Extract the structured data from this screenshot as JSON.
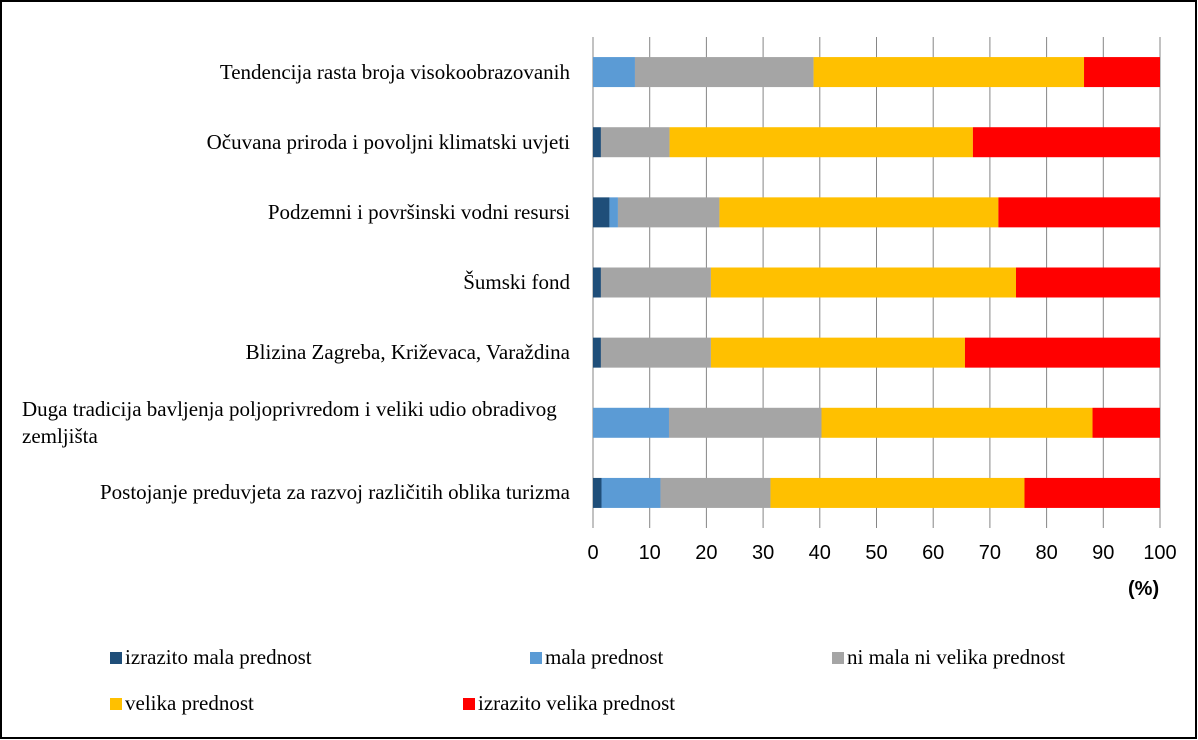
{
  "chart_data": {
    "type": "stacked-barh",
    "categories": [
      "Tendencija rasta broja visokoobrazovanih",
      "Očuvana priroda i povoljni klimatski uvjeti",
      "Podzemni i površinski vodni resursi",
      "Šumski fond",
      "Blizina Zagreba, Križevaca, Varaždina",
      "Duga tradicija bavljenja poljoprivredom i veliki udio obradivog zemljišta",
      "Postojanje preduvjeta za razvoj različitih oblika turizma"
    ],
    "series": [
      {
        "name": "izrazito mala prednost",
        "color": "#1f4e79",
        "values": [
          0,
          1.4,
          2.9,
          1.4,
          1.4,
          0,
          1.5
        ]
      },
      {
        "name": "mala prednost",
        "color": "#5b9bd5",
        "values": [
          7.4,
          0,
          1.5,
          0,
          0,
          13.4,
          10.4
        ]
      },
      {
        "name": "ni mala ni velika prednost",
        "color": "#a5a5a5",
        "values": [
          31.5,
          12.1,
          17.9,
          19.4,
          19.4,
          26.9,
          19.4
        ]
      },
      {
        "name": "velika prednost",
        "color": "#ffc000",
        "values": [
          47.7,
          53.5,
          49.2,
          53.8,
          44.8,
          47.8,
          44.8
        ]
      },
      {
        "name": "izrazito velika prednost",
        "color": "#ff0000",
        "values": [
          13.4,
          33,
          28.5,
          25.4,
          34.4,
          11.9,
          23.9
        ]
      }
    ],
    "xlabel": "(%)",
    "xlim": [
      0,
      100
    ],
    "xticks": [
      0,
      10,
      20,
      30,
      40,
      50,
      60,
      70,
      80,
      90,
      100
    ],
    "grid": true
  }
}
